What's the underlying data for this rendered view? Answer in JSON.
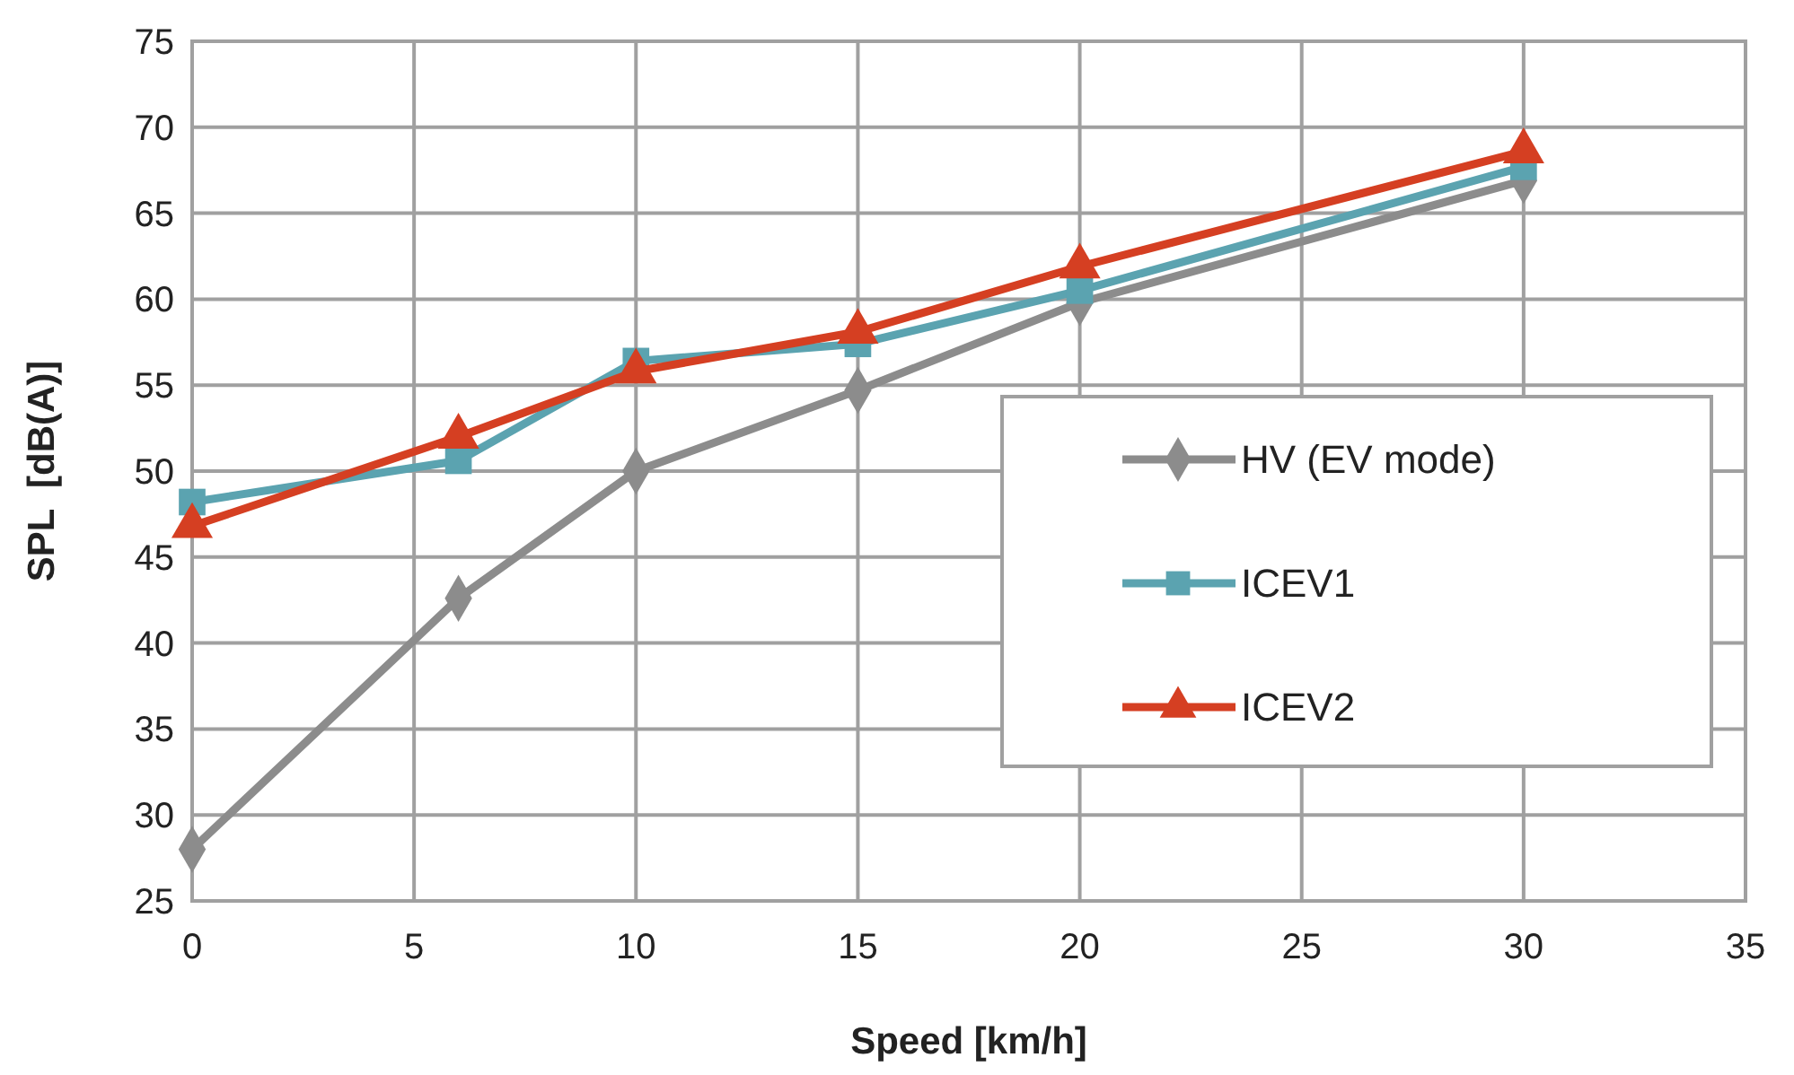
{
  "chart_data": {
    "type": "line",
    "xlabel": "Speed [km/h]",
    "ylabel": "SPL  [dB(A)]",
    "x": [
      0,
      6,
      10,
      15,
      20,
      30
    ],
    "xlim": [
      0,
      35
    ],
    "xticks": [
      0,
      5,
      10,
      15,
      20,
      25,
      30,
      35
    ],
    "ylim": [
      25,
      75
    ],
    "yticks": [
      25,
      30,
      35,
      40,
      45,
      50,
      55,
      60,
      65,
      70,
      75
    ],
    "grid": true,
    "legend": "right",
    "line_style": "solid",
    "series": [
      {
        "name": "HV (EV mode)",
        "color": "#8c8c8c",
        "marker": "diamond",
        "values": [
          28,
          42.6,
          50,
          54.7,
          59.8,
          66.9
        ]
      },
      {
        "name": "ICEV1",
        "color": "#5ba3b0",
        "marker": "square",
        "values": [
          48.2,
          50.6,
          56.4,
          57.4,
          60.5,
          67.7
        ]
      },
      {
        "name": "ICEV2",
        "color": "#d53f22",
        "marker": "triangle",
        "values": [
          46.8,
          52,
          55.8,
          58.1,
          61.9,
          68.6
        ]
      }
    ]
  }
}
